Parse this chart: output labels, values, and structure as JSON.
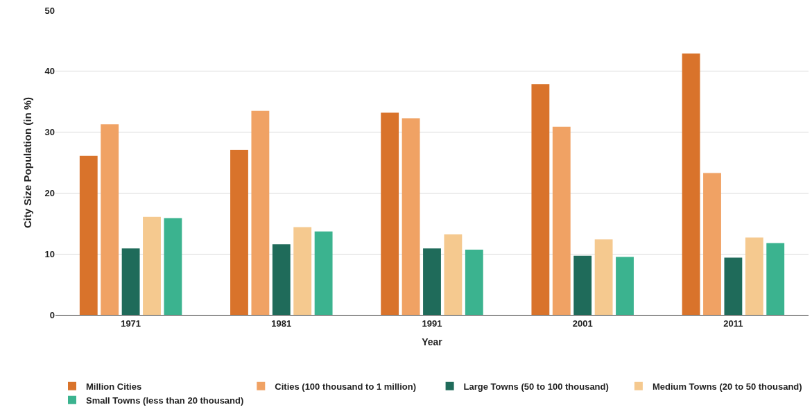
{
  "chart_data": {
    "type": "bar",
    "xlabel": "Year",
    "ylabel": "City Size Population (in %)",
    "categories": [
      "1971",
      "1981",
      "1991",
      "2001",
      "2011"
    ],
    "series": [
      {
        "name": "Million Cities",
        "color": "#d9732b",
        "values": [
          26.1,
          27.1,
          33.2,
          37.9,
          42.9
        ]
      },
      {
        "name": "Cities (100 thousand to 1 million)",
        "color": "#f0a264",
        "values": [
          31.3,
          33.5,
          32.3,
          30.9,
          23.3
        ]
      },
      {
        "name": "Large Towns (50 to 100 thousand)",
        "color": "#1f6b5a",
        "values": [
          10.9,
          11.6,
          10.9,
          9.7,
          9.4
        ]
      },
      {
        "name": "Medium Towns (20 to 50 thousand)",
        "color": "#f5c98f",
        "values": [
          16.1,
          14.4,
          13.2,
          12.4,
          12.7
        ]
      },
      {
        "name": "Small Towns (less than 20 thousand)",
        "color": "#3bb38f",
        "values": [
          15.9,
          13.7,
          10.7,
          9.5,
          11.8
        ]
      }
    ],
    "ylim": [
      0,
      50
    ],
    "yticks": [
      0,
      10,
      20,
      30,
      40,
      50
    ],
    "grid": "y",
    "legend": "bottom"
  }
}
